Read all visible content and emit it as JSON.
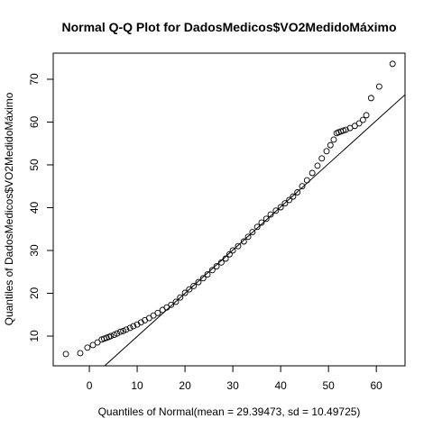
{
  "chart_data": {
    "type": "scatter",
    "title": "Normal Q-Q Plot for DadosMedicos$VO2MedidoMáximo",
    "x_label": "Quantiles of Normal(mean = 29.39473, sd = 10.49725)",
    "y_label": "Quantiles of DadosMedicos$VO2MedidoMáximo",
    "color": "#000000",
    "x": [
      -4.9,
      -1.9,
      -0.4,
      0.75,
      1.7,
      2.6,
      3.1,
      3.6,
      4.1,
      4.5,
      5.2,
      5.8,
      6.5,
      7.1,
      7.7,
      8.5,
      9.2,
      10,
      10.8,
      11.6,
      12.5,
      13.4,
      14.3,
      15.3,
      16.2,
      17.1,
      18.1,
      19,
      20,
      20.9,
      21.8,
      22.8,
      23.8,
      24.7,
      25.7,
      26.6,
      27.6,
      28.5,
      29.3,
      30,
      31.1,
      32.3,
      33.2,
      34.1,
      35.1,
      36,
      37,
      37.9,
      39,
      40,
      40.9,
      41.8,
      42.6,
      43.5,
      44.5,
      45.5,
      46.6,
      47.7,
      48.6,
      49.6,
      50.4,
      51.1,
      51.7,
      52.1,
      52.6,
      53.1,
      53.6,
      54.5,
      55.5,
      56.4,
      57.2,
      57.9,
      58.9,
      60.6,
      63.4
    ],
    "y": [
      5.8,
      6.0,
      7.3,
      7.9,
      8.5,
      9.2,
      9.4,
      9.6,
      9.8,
      10,
      10.3,
      10.6,
      11.0,
      11.2,
      11.5,
      11.9,
      12.3,
      12.7,
      13.2,
      13.7,
      14.2,
      14.8,
      15.4,
      16.1,
      16.7,
      17.3,
      18.0,
      19.0,
      20.1,
      20.9,
      21.7,
      22.6,
      23.5,
      24.4,
      25.4,
      26.3,
      27.2,
      28.1,
      29.1,
      30.0,
      31.0,
      32.1,
      33.2,
      34.3,
      35.5,
      36.5,
      37.4,
      38.4,
      39.3,
      40.1,
      41.0,
      41.8,
      42.6,
      43.6,
      45.0,
      46.4,
      48.1,
      49.8,
      51.5,
      53.2,
      54.6,
      55.9,
      57.4,
      57.6,
      57.8,
      58.0,
      58.2,
      58.6,
      59.1,
      59.7,
      60.5,
      61.6,
      65.6,
      68.3,
      73.6
    ],
    "reference_line": {
      "x": [
        3.2,
        66
      ],
      "y": [
        3.05,
        66.4
      ]
    },
    "xlim": [
      -7.55,
      66
    ],
    "ylim": [
      3.05,
      76.1
    ],
    "xticks": [
      0,
      10,
      20,
      30,
      40,
      50,
      60
    ],
    "yticks": [
      10,
      20,
      30,
      40,
      50,
      60,
      70
    ]
  }
}
